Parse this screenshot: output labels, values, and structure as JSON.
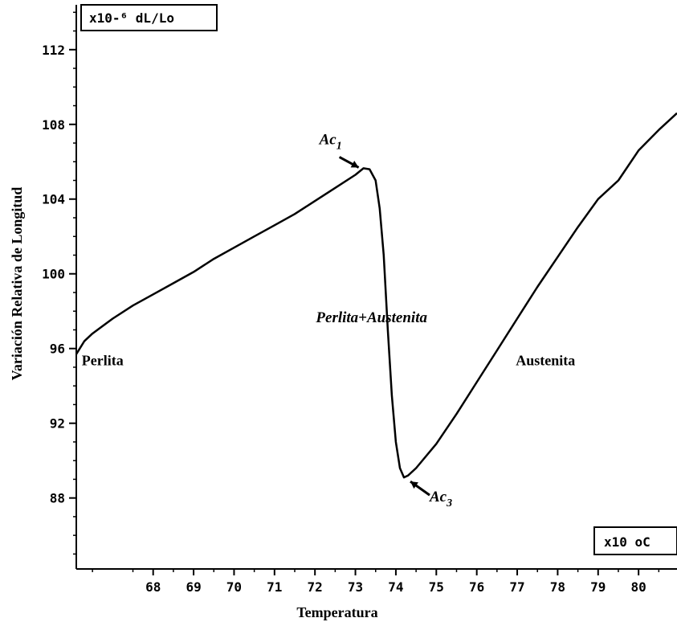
{
  "chart_data": {
    "type": "line",
    "xlabel": "Temperatura",
    "ylabel": "Variación Relativa de Longitud",
    "y_unit_box": "x10-⁶  dL/Lo",
    "x_unit_box": "x10  oC",
    "xlim": [
      66.1,
      80.95
    ],
    "ylim": [
      84.2,
      114.4
    ],
    "x_ticks": [
      68,
      69,
      70,
      71,
      72,
      73,
      74,
      75,
      76,
      77,
      78,
      79,
      80
    ],
    "x_tick_labels": [
      "68",
      "69",
      "70",
      "71",
      "72",
      "73",
      "74",
      "75",
      "76",
      "77",
      "78",
      "79",
      "80"
    ],
    "y_ticks": [
      88,
      92,
      96,
      100,
      104,
      108,
      112
    ],
    "y_tick_labels": [
      "88",
      "92",
      "96",
      "100",
      "104",
      "108",
      "112"
    ],
    "grid": false,
    "series": [
      {
        "x": [
          66.1,
          66.3,
          66.5,
          67.0,
          67.5,
          68.0,
          68.5,
          69.0,
          69.5,
          70.0,
          70.5,
          71.0,
          71.5,
          72.0,
          72.5,
          73.0,
          73.2,
          73.35,
          73.5,
          73.6,
          73.7,
          73.8,
          73.9,
          74.0,
          74.1,
          74.2,
          74.3,
          74.5,
          75.0,
          75.5,
          76.0,
          76.5,
          77.0,
          77.5,
          78.0,
          78.5,
          79.0,
          79.5,
          80.0,
          80.5,
          80.95
        ],
        "y": [
          95.7,
          96.4,
          96.8,
          97.6,
          98.3,
          98.9,
          99.5,
          100.1,
          100.8,
          101.4,
          102.0,
          102.6,
          103.2,
          103.9,
          104.6,
          105.3,
          105.65,
          105.6,
          105.0,
          103.5,
          101.0,
          97.0,
          93.5,
          91.0,
          89.6,
          89.1,
          89.2,
          89.6,
          90.9,
          92.5,
          94.2,
          95.9,
          97.6,
          99.3,
          100.9,
          102.5,
          104.0,
          105.0,
          106.6,
          107.7,
          108.6
        ]
      }
    ],
    "annotations": [
      {
        "text": "Ac",
        "subscript": "1",
        "x": 73.2,
        "y": 105.65
      },
      {
        "text": "Ac",
        "subscript": "3",
        "x": 74.2,
        "y": 89.1
      }
    ],
    "regions": [
      {
        "label": "Perlita",
        "x": 66.75,
        "y": 95.1,
        "italic": false
      },
      {
        "label": "Perlita+Austenita",
        "x": 73.4,
        "y": 97.4,
        "italic": true
      },
      {
        "label": "Austenita",
        "x": 77.7,
        "y": 95.1,
        "italic": false
      }
    ]
  }
}
